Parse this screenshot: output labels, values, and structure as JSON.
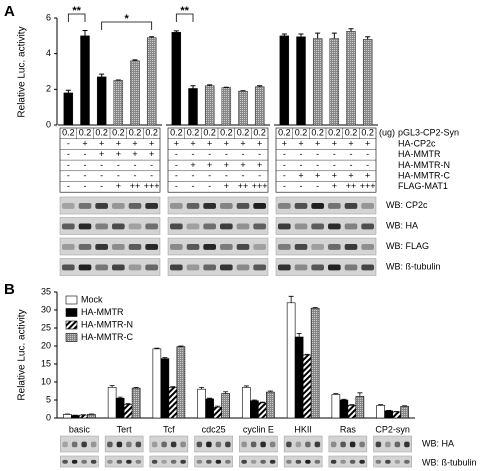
{
  "chart_data": [
    {
      "type": "grouped-table-bar",
      "panel": "A",
      "ylabel": "Relative Luc. activity",
      "ylim": [
        0,
        6
      ],
      "yticks": [
        0,
        2,
        4,
        6
      ],
      "groups": [
        {
          "values": [
            1.8,
            5.0,
            2.7,
            2.5,
            3.6,
            4.9
          ],
          "errors": [
            0.15,
            0.3,
            0.15,
            0.02,
            0.05,
            0.05
          ],
          "colors": [
            "#000000",
            "#000000",
            "#000000",
            "#a0a0a0",
            "#a0a0a0",
            "#a0a0a0"
          ]
        },
        {
          "values": [
            5.2,
            2.05,
            2.2,
            2.1,
            1.9,
            2.15
          ],
          "errors": [
            0.08,
            0.15,
            0.05,
            0.02,
            0.02,
            0.05
          ],
          "colors": [
            "#000000",
            "#000000",
            "#a0a0a0",
            "#a0a0a0",
            "#a0a0a0",
            "#a0a0a0"
          ]
        },
        {
          "values": [
            5.0,
            4.95,
            4.85,
            4.85,
            5.25,
            4.8
          ],
          "errors": [
            0.1,
            0.15,
            0.3,
            0.3,
            0.15,
            0.15
          ],
          "colors": [
            "#000000",
            "#000000",
            "#a0a0a0",
            "#a0a0a0",
            "#a0a0a0",
            "#a0a0a0"
          ]
        }
      ],
      "significance": [
        "**",
        "*",
        "**"
      ],
      "table": {
        "unit": "(ug)",
        "row_labels": [
          "pGL3-CP2-Syn",
          "HA-CP2c",
          "HA-MMTR",
          "HA-MMTR-N",
          "HA-MMTR-C",
          "FLAG-MAT1"
        ],
        "groups": [
          [
            [
              "0.2",
              "0.2",
              "0.2",
              "0.2",
              "0.2",
              "0.2"
            ],
            [
              "-",
              "+",
              "+",
              "+",
              "+",
              "+"
            ],
            [
              "-",
              "-",
              "+",
              "+",
              "+",
              "+"
            ],
            [
              "-",
              "-",
              "-",
              "-",
              "-",
              "-"
            ],
            [
              "-",
              "-",
              "-",
              "-",
              "-",
              "-"
            ],
            [
              "-",
              "-",
              "-",
              "+",
              "++",
              "+++"
            ]
          ],
          [
            [
              "0.2",
              "0.2",
              "0.2",
              "0.2",
              "0.2",
              "0.2"
            ],
            [
              "+",
              "+",
              "+",
              "+",
              "+",
              "+"
            ],
            [
              "-",
              "-",
              "-",
              "-",
              "-",
              "-"
            ],
            [
              "-",
              "+",
              "+",
              "+",
              "+",
              "+"
            ],
            [
              "-",
              "-",
              "-",
              "-",
              "-",
              "-"
            ],
            [
              "-",
              "-",
              "-",
              "+",
              "++",
              "+++"
            ]
          ],
          [
            [
              "0.2",
              "0.2",
              "0.2",
              "0.2",
              "0.2",
              "0.2"
            ],
            [
              "+",
              "+",
              "+",
              "+",
              "+",
              "+"
            ],
            [
              "-",
              "-",
              "-",
              "-",
              "-",
              "-"
            ],
            [
              "-",
              "-",
              "-",
              "-",
              "-",
              "-"
            ],
            [
              "-",
              "+",
              "+",
              "+",
              "+",
              "+"
            ],
            [
              "-",
              "-",
              "-",
              "+",
              "++",
              "+++"
            ]
          ]
        ]
      },
      "blots": [
        "WB: CP2c",
        "WB: HA",
        "WB: FLAG",
        "WB: ß-tubulin"
      ]
    },
    {
      "type": "bar",
      "panel": "B",
      "ylabel": "Relative Luc. activity",
      "categories": [
        "basic",
        "Tert",
        "Tcf",
        "cdc25",
        "cyclin E",
        "HKII",
        "Ras",
        "CP2-syn"
      ],
      "ylim": [
        0,
        35
      ],
      "yticks": [
        0,
        5,
        10,
        15,
        20,
        25,
        30,
        35
      ],
      "series": [
        {
          "name": "Mock",
          "color": "#ffffff",
          "values": [
            1.0,
            8.5,
            19.2,
            8.0,
            8.5,
            32.0,
            6.5,
            3.5
          ],
          "errors": [
            0.1,
            0.5,
            0.2,
            0.5,
            0.4,
            1.8,
            0.3,
            0.2
          ]
        },
        {
          "name": "HA-MMTR",
          "color": "#000000",
          "values": [
            0.7,
            5.5,
            16.5,
            5.3,
            4.8,
            22.5,
            5.0,
            2.0
          ],
          "errors": [
            0.1,
            0.3,
            0.3,
            0.2,
            0.2,
            1.0,
            0.2,
            0.1
          ]
        },
        {
          "name": "HA-MMTR-N",
          "color": "#000000",
          "pattern": "hatch",
          "values": [
            0.8,
            3.8,
            8.5,
            3.0,
            4.2,
            17.5,
            3.5,
            1.7
          ],
          "errors": [
            0.1,
            0.2,
            0.2,
            0.3,
            0.2,
            0.2,
            0.2,
            0.1
          ]
        },
        {
          "name": "HA-MMTR-C",
          "color": "#a0a0a0",
          "pattern": "dots",
          "values": [
            1.0,
            8.3,
            19.8,
            6.8,
            7.2,
            30.5,
            6.0,
            3.2
          ],
          "errors": [
            0.1,
            0.2,
            0.2,
            0.5,
            0.3,
            0.2,
            1.0,
            0.2
          ]
        }
      ],
      "blots": [
        "WB: HA",
        "WB: ß-tubulin"
      ]
    }
  ]
}
